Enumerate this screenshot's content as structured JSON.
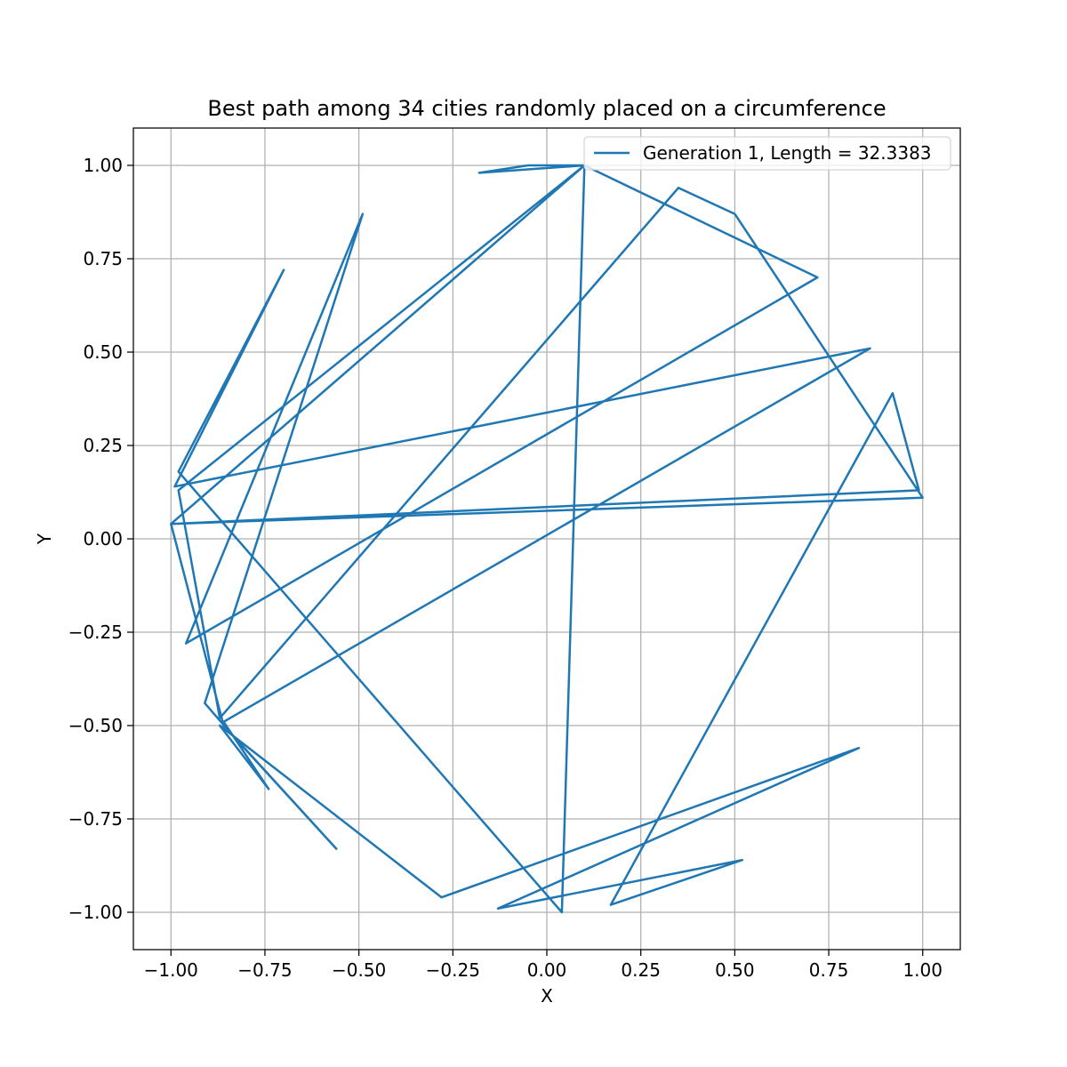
{
  "chart_data": {
    "type": "line",
    "title": "Best path among 34 cities randomly placed on a circumference",
    "xlabel": "X",
    "ylabel": "Y",
    "xlim": [
      -1.1,
      1.1
    ],
    "ylim": [
      -1.1,
      1.1
    ],
    "grid": true,
    "legend_position": "top-right",
    "line_color": "#1f77b4",
    "x_ticks": [
      -1.0,
      -0.75,
      -0.5,
      -0.25,
      0.0,
      0.25,
      0.5,
      0.75,
      1.0
    ],
    "x_tick_labels": [
      "−1.00",
      "−0.75",
      "−0.50",
      "−0.25",
      "0.00",
      "0.25",
      "0.50",
      "0.75",
      "1.00"
    ],
    "y_ticks": [
      -1.0,
      -0.75,
      -0.5,
      -0.25,
      0.0,
      0.25,
      0.5,
      0.75,
      1.0
    ],
    "y_tick_labels": [
      "−1.00",
      "−0.75",
      "−0.50",
      "−0.25",
      "0.00",
      "0.25",
      "0.50",
      "0.75",
      "1.00"
    ],
    "series": [
      {
        "name": "Generation 1, Length = 32.3383",
        "x": [
          0.5,
          0.35,
          -0.87,
          -0.98,
          0.1,
          -0.18,
          -0.05,
          0.1,
          0.72,
          -0.96,
          -0.49,
          -0.91,
          -0.85,
          -0.56,
          -0.86,
          -1.0,
          0.99,
          0.92,
          0.17,
          0.52,
          -0.13,
          0.83,
          -0.28,
          -0.87,
          -0.74,
          -0.86,
          0.86,
          -0.99,
          -0.7,
          -0.98,
          0.04,
          0.1,
          -1.0,
          1.0,
          0.5
        ],
        "y": [
          0.87,
          0.94,
          -0.48,
          0.13,
          1.0,
          0.98,
          1.0,
          1.0,
          0.7,
          -0.28,
          0.87,
          -0.44,
          -0.51,
          -0.83,
          -0.5,
          0.04,
          0.13,
          0.39,
          -0.98,
          -0.86,
          -0.99,
          -0.56,
          -0.96,
          -0.5,
          -0.67,
          -0.49,
          0.51,
          0.14,
          0.72,
          0.18,
          -1.0,
          1.0,
          0.04,
          0.11,
          0.87
        ]
      }
    ]
  }
}
